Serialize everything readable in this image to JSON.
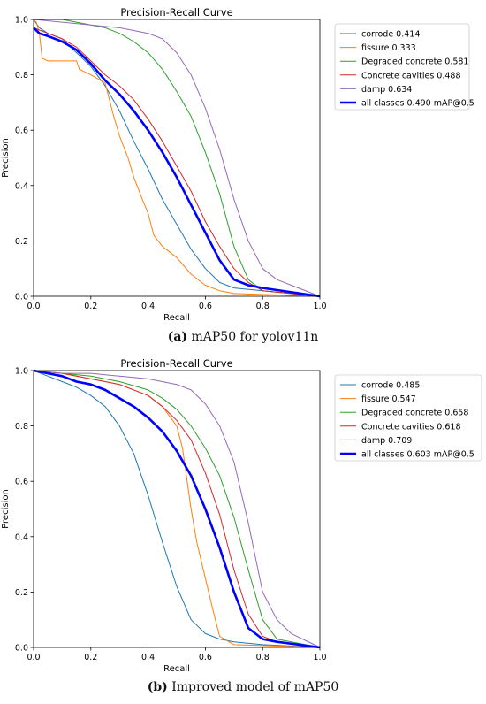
{
  "captions": [
    {
      "label": "(a)",
      "text": " mAP50 for yolov11n"
    },
    {
      "label": "(b)",
      "text": " Improved model of mAP50"
    }
  ],
  "colors": {
    "corrode": "#1f77b4",
    "fissure": "#ff7f0e",
    "Degraded concrete": "#2ca02c",
    "Concrete cavities": "#d62728",
    "damp": "#9467bd",
    "all classes": "#0000ff"
  },
  "chart_data": [
    {
      "type": "line",
      "title": "Precision-Recall Curve",
      "xlabel": "Recall",
      "ylabel": "Precision",
      "xlim": [
        0,
        1
      ],
      "ylim": [
        0,
        1
      ],
      "xticks": [
        "0.0",
        "0.2",
        "0.4",
        "0.6",
        "0.8",
        "1.0"
      ],
      "yticks": [
        "0.0",
        "0.2",
        "0.4",
        "0.6",
        "0.8",
        "1.0"
      ],
      "legend_position": "outside-right",
      "series": [
        {
          "name": "corrode 0.414",
          "key": "corrode",
          "x": [
            0,
            0.02,
            0.05,
            0.1,
            0.15,
            0.2,
            0.25,
            0.3,
            0.35,
            0.4,
            0.45,
            0.5,
            0.55,
            0.6,
            0.65,
            0.7,
            0.8,
            1.0
          ],
          "y": [
            1.0,
            0.97,
            0.95,
            0.93,
            0.88,
            0.83,
            0.76,
            0.67,
            0.56,
            0.46,
            0.35,
            0.26,
            0.17,
            0.1,
            0.05,
            0.03,
            0.02,
            0.0
          ]
        },
        {
          "name": "fissure 0.333",
          "key": "fissure",
          "x": [
            0,
            0.01,
            0.02,
            0.03,
            0.05,
            0.15,
            0.16,
            0.2,
            0.25,
            0.28,
            0.3,
            0.33,
            0.35,
            0.38,
            0.4,
            0.42,
            0.45,
            0.5,
            0.55,
            0.6,
            0.65,
            0.7,
            1.0
          ],
          "y": [
            1.0,
            0.99,
            0.95,
            0.86,
            0.85,
            0.85,
            0.82,
            0.8,
            0.77,
            0.65,
            0.58,
            0.5,
            0.43,
            0.35,
            0.3,
            0.22,
            0.18,
            0.14,
            0.08,
            0.04,
            0.02,
            0.01,
            0.0
          ]
        },
        {
          "name": "Degraded concrete 0.581",
          "key": "degraded",
          "x": [
            0,
            0.1,
            0.2,
            0.25,
            0.3,
            0.35,
            0.4,
            0.45,
            0.5,
            0.55,
            0.6,
            0.65,
            0.7,
            0.75,
            0.8,
            1.0
          ],
          "y": [
            1.0,
            1.0,
            0.98,
            0.97,
            0.95,
            0.92,
            0.88,
            0.82,
            0.74,
            0.65,
            0.52,
            0.37,
            0.18,
            0.06,
            0.02,
            0.0
          ]
        },
        {
          "name": "Concrete cavities 0.488",
          "key": "cavities",
          "x": [
            0,
            0.05,
            0.1,
            0.15,
            0.2,
            0.25,
            0.3,
            0.35,
            0.4,
            0.45,
            0.5,
            0.55,
            0.6,
            0.65,
            0.7,
            0.75,
            0.8,
            1.0
          ],
          "y": [
            0.97,
            0.95,
            0.93,
            0.9,
            0.85,
            0.8,
            0.76,
            0.71,
            0.64,
            0.56,
            0.47,
            0.38,
            0.27,
            0.18,
            0.1,
            0.05,
            0.02,
            0.0
          ]
        },
        {
          "name": "damp 0.634",
          "key": "damp",
          "x": [
            0,
            0.1,
            0.2,
            0.3,
            0.35,
            0.4,
            0.45,
            0.5,
            0.55,
            0.6,
            0.65,
            0.7,
            0.75,
            0.8,
            0.85,
            0.9,
            1.0
          ],
          "y": [
            1.0,
            0.99,
            0.98,
            0.97,
            0.96,
            0.95,
            0.93,
            0.88,
            0.8,
            0.68,
            0.53,
            0.35,
            0.2,
            0.1,
            0.06,
            0.04,
            0.0
          ]
        },
        {
          "name": "all classes 0.490 mAP@0.5",
          "key": "all",
          "bold": true,
          "x": [
            0,
            0.02,
            0.05,
            0.1,
            0.15,
            0.2,
            0.25,
            0.3,
            0.35,
            0.4,
            0.45,
            0.5,
            0.55,
            0.6,
            0.65,
            0.7,
            0.75,
            0.8,
            1.0
          ],
          "y": [
            0.97,
            0.95,
            0.94,
            0.92,
            0.89,
            0.84,
            0.78,
            0.73,
            0.67,
            0.6,
            0.52,
            0.43,
            0.33,
            0.23,
            0.13,
            0.06,
            0.04,
            0.03,
            0.0
          ]
        }
      ]
    },
    {
      "type": "line",
      "title": "Precision-Recall Curve",
      "xlabel": "Recall",
      "ylabel": "Precision",
      "xlim": [
        0,
        1
      ],
      "ylim": [
        0,
        1
      ],
      "xticks": [
        "0.0",
        "0.2",
        "0.4",
        "0.6",
        "0.8",
        "1.0"
      ],
      "yticks": [
        "0.0",
        "0.2",
        "0.4",
        "0.6",
        "0.8",
        "1.0"
      ],
      "legend_position": "outside-right",
      "series": [
        {
          "name": "corrode 0.485",
          "key": "corrode",
          "x": [
            0,
            0.05,
            0.1,
            0.15,
            0.2,
            0.25,
            0.3,
            0.35,
            0.4,
            0.45,
            0.5,
            0.55,
            0.6,
            0.65,
            0.7,
            0.8,
            1.0
          ],
          "y": [
            1.0,
            0.98,
            0.96,
            0.94,
            0.91,
            0.87,
            0.8,
            0.7,
            0.55,
            0.38,
            0.22,
            0.1,
            0.05,
            0.03,
            0.02,
            0.01,
            0.0
          ]
        },
        {
          "name": "fissure 0.547",
          "key": "fissure",
          "x": [
            0,
            0.1,
            0.2,
            0.3,
            0.4,
            0.45,
            0.5,
            0.52,
            0.55,
            0.57,
            0.6,
            0.63,
            0.65,
            0.7,
            1.0
          ],
          "y": [
            1.0,
            0.99,
            0.97,
            0.95,
            0.91,
            0.87,
            0.8,
            0.72,
            0.5,
            0.38,
            0.25,
            0.12,
            0.04,
            0.01,
            0.0
          ]
        },
        {
          "name": "Degraded concrete 0.658",
          "key": "degraded",
          "x": [
            0,
            0.1,
            0.2,
            0.3,
            0.4,
            0.45,
            0.5,
            0.55,
            0.6,
            0.65,
            0.7,
            0.75,
            0.8,
            0.85,
            1.0
          ],
          "y": [
            1.0,
            0.99,
            0.98,
            0.96,
            0.93,
            0.9,
            0.86,
            0.8,
            0.72,
            0.62,
            0.47,
            0.28,
            0.1,
            0.03,
            0.0
          ]
        },
        {
          "name": "Concrete cavities 0.618",
          "key": "cavities",
          "x": [
            0,
            0.1,
            0.2,
            0.3,
            0.4,
            0.45,
            0.5,
            0.55,
            0.6,
            0.65,
            0.7,
            0.75,
            0.8,
            0.85,
            1.0
          ],
          "y": [
            1.0,
            0.99,
            0.97,
            0.95,
            0.91,
            0.87,
            0.82,
            0.75,
            0.63,
            0.48,
            0.28,
            0.12,
            0.04,
            0.02,
            0.0
          ]
        },
        {
          "name": "damp 0.709",
          "key": "damp",
          "x": [
            0,
            0.1,
            0.2,
            0.3,
            0.4,
            0.5,
            0.55,
            0.6,
            0.65,
            0.7,
            0.75,
            0.8,
            0.85,
            0.9,
            1.0
          ],
          "y": [
            1.0,
            0.99,
            0.99,
            0.98,
            0.97,
            0.95,
            0.93,
            0.88,
            0.8,
            0.67,
            0.45,
            0.2,
            0.1,
            0.05,
            0.0
          ]
        },
        {
          "name": "all classes 0.603 mAP@0.5",
          "key": "all",
          "bold": true,
          "x": [
            0,
            0.05,
            0.1,
            0.15,
            0.2,
            0.25,
            0.3,
            0.35,
            0.4,
            0.45,
            0.5,
            0.55,
            0.6,
            0.65,
            0.7,
            0.75,
            0.8,
            0.85,
            1.0
          ],
          "y": [
            1.0,
            0.99,
            0.98,
            0.96,
            0.95,
            0.93,
            0.9,
            0.87,
            0.83,
            0.78,
            0.71,
            0.62,
            0.5,
            0.36,
            0.2,
            0.07,
            0.03,
            0.02,
            0.0
          ]
        }
      ]
    }
  ]
}
